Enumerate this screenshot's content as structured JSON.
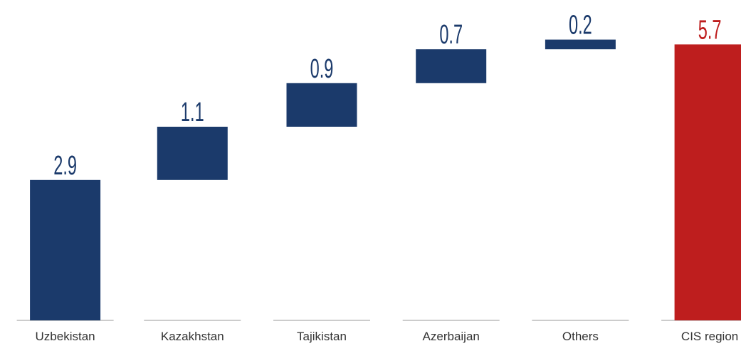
{
  "chart_data": {
    "type": "waterfall",
    "categories": [
      "Uzbekistan",
      "Kazakhstan",
      "Tajikistan",
      "Azerbaijan",
      "Others",
      "CIS region"
    ],
    "values": [
      2.9,
      1.1,
      0.9,
      0.7,
      0.2,
      5.7
    ],
    "colors": [
      "#1b3a6b",
      "#1b3a6b",
      "#1b3a6b",
      "#1b3a6b",
      "#1b3a6b",
      "#be1e1e"
    ]
  }
}
